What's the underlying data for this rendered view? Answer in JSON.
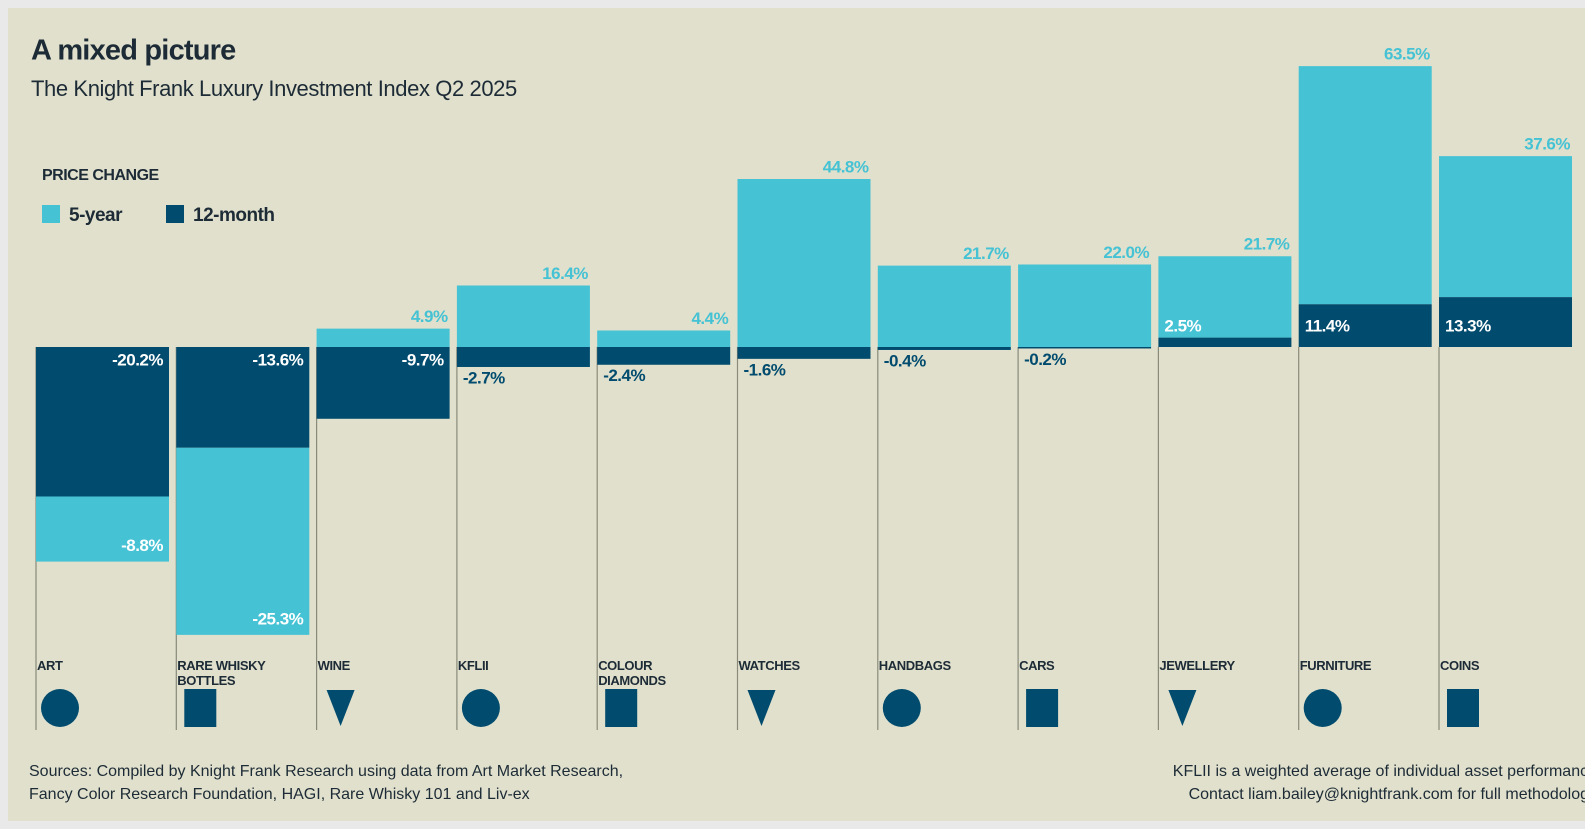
{
  "chart_data": {
    "type": "bar",
    "title": "A mixed picture",
    "subtitle": "The Knight Frank Luxury Investment Index Q2 2025",
    "legend_title": "PRICE CHANGE",
    "categories": [
      "ART",
      "RARE WHISKY BOTTLES",
      "WINE",
      "KFLII",
      "COLOUR DIAMONDS",
      "WATCHES",
      "HANDBAGS",
      "CARS",
      "JEWELLERY",
      "FURNITURE",
      "COINS"
    ],
    "series": [
      {
        "name": "5-year",
        "color": "#45c2d4",
        "values": [
          -8.8,
          -25.3,
          4.9,
          16.4,
          4.4,
          44.8,
          21.7,
          22.0,
          21.7,
          63.5,
          37.6
        ],
        "value_labels": [
          "-8.8%",
          "-25.3%",
          "4.9%",
          "16.4%",
          "4.4%",
          "44.8%",
          "21.7%",
          "22.0%",
          "21.7%",
          "63.5%",
          "37.6%"
        ]
      },
      {
        "name": "12-month",
        "color": "#004b6e",
        "values": [
          -20.2,
          -13.6,
          -9.7,
          -2.7,
          -2.4,
          -1.6,
          -0.4,
          -0.2,
          2.5,
          11.4,
          13.3
        ],
        "value_labels": [
          "-20.2%",
          "-13.6%",
          "-9.7%",
          "-2.7%",
          "-2.4%",
          "-1.6%",
          "-0.4%",
          "-0.2%",
          "2.5%",
          "11.4%",
          "13.3%"
        ]
      }
    ],
    "sources": [
      "Sources: Compiled by Knight Frank Research using data from Art Market Research,",
      "Fancy Color Research Foundation, HAGI, Rare Whisky 101 and Liv-ex"
    ],
    "notes": [
      "KFLII is a weighted average of individual asset performance",
      "Contact liam.bailey@knightfrank.com for full methodology"
    ]
  }
}
